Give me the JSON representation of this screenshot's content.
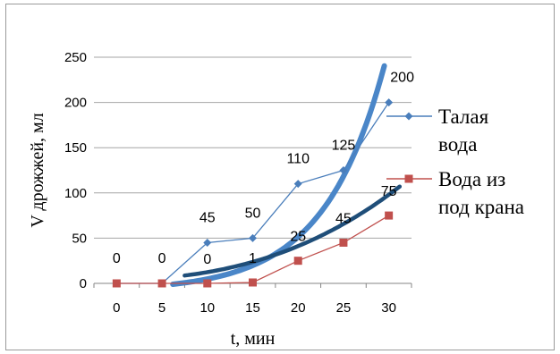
{
  "chart_data": {
    "type": "line",
    "xlabel": "t, мин",
    "ylabel": "V дрожжей, мл",
    "categories": [
      "0",
      "5",
      "10",
      "15",
      "20",
      "25",
      "30"
    ],
    "ylim": [
      0,
      250
    ],
    "yticks": [
      "0",
      "50",
      "100",
      "150",
      "200",
      "250"
    ],
    "grid": "horizontal",
    "legend_position": "right",
    "series": [
      {
        "name": "Талая вода",
        "values": [
          0,
          0,
          45,
          50,
          110,
          125,
          200
        ],
        "labels": [
          "0",
          "0",
          "45",
          "50",
          "110",
          "125",
          "200"
        ],
        "color": "#4a7ebb",
        "marker": "diamond",
        "trend_color": "#4a86c8"
      },
      {
        "name": "Вода из под крана",
        "values": [
          0,
          0,
          0,
          1,
          25,
          45,
          75
        ],
        "labels": [
          "",
          "",
          "0",
          "1",
          "25",
          "45",
          "75"
        ],
        "color": "#c0504d",
        "marker": "square",
        "trend_color": "#1f4e79"
      }
    ],
    "legend": [
      {
        "lines": [
          "Талая",
          "вода"
        ]
      },
      {
        "lines": [
          "Вода из",
          "под крана"
        ]
      }
    ]
  }
}
